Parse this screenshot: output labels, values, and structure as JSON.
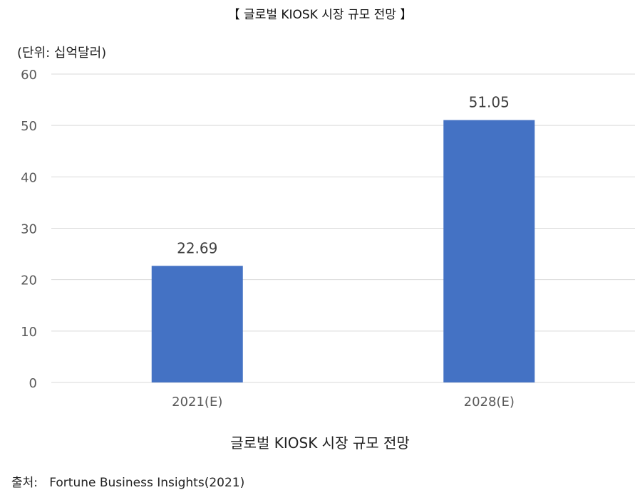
{
  "title": "【 글로벌 KIOSK 시장 규모 전망 】",
  "unit": "(단위: 십억달러)",
  "caption": "글로벌 KIOSK 시장 규모 전망",
  "source": {
    "label": "출처:",
    "value": "Fortune Business Insights(2021)"
  },
  "colors": {
    "bar": "#4472C4",
    "grid": "#D9D9D9",
    "axis_text": "#595959",
    "label_text": "#404040"
  },
  "chart_data": {
    "type": "bar",
    "categories": [
      "2021(E)",
      "2028(E)"
    ],
    "values": [
      22.69,
      51.05
    ],
    "data_labels": [
      "22.69",
      "51.05"
    ],
    "title": "",
    "xlabel": "",
    "ylabel": "",
    "ylim": [
      0,
      60
    ],
    "yticks": [
      0,
      10,
      20,
      30,
      40,
      50,
      60
    ],
    "grid": true,
    "legend": "none"
  }
}
